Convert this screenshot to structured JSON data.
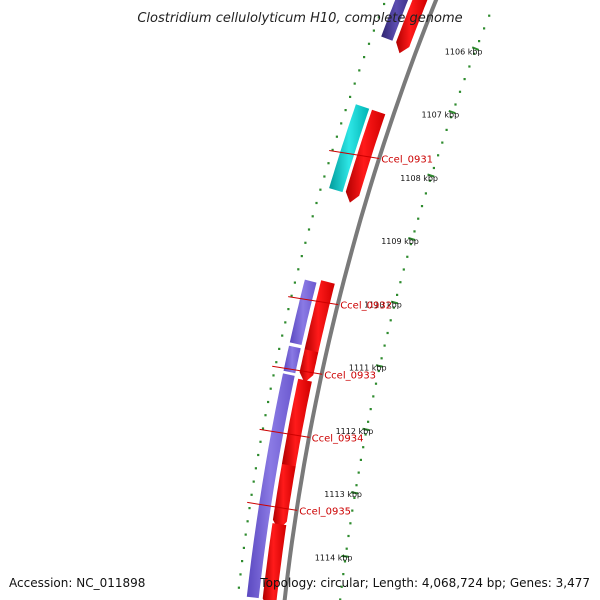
{
  "title": "Clostridium cellulolyticum H10, complete genome",
  "footer": {
    "accession": "Accession: NC_011898",
    "summary": "Topology: circular; Length: 4,068,724 bp; Genes: 3,477"
  },
  "ticks": [
    {
      "label": "1106 kbp",
      "kbp": 1106
    },
    {
      "label": "1107 kbp",
      "kbp": 1107
    },
    {
      "label": "1108 kbp",
      "kbp": 1108
    },
    {
      "label": "1109 kbp",
      "kbp": 1109
    },
    {
      "label": "1110 kbp",
      "kbp": 1110
    },
    {
      "label": "1111 kbp",
      "kbp": 1111
    },
    {
      "label": "1112 kbp",
      "kbp": 1112
    },
    {
      "label": "1113 kbp",
      "kbp": 1113
    },
    {
      "label": "1114 kbp",
      "kbp": 1114
    }
  ],
  "gene_labels": [
    {
      "label": "Ccel_0931",
      "kbp": 1108.1
    },
    {
      "label": "Ccel_0932",
      "kbp": 1110.3
    },
    {
      "label": "Ccel_0933",
      "kbp": 1111.35
    },
    {
      "label": "Ccel_0934",
      "kbp": 1112.3
    },
    {
      "label": "Ccel_0935",
      "kbp": 1113.4
    }
  ],
  "features": {
    "cds_red": [
      {
        "start": 1105.6,
        "end": 1106.32
      },
      {
        "start": 1107.35,
        "end": 1108.6
      },
      {
        "start": 1109.95,
        "end": 1111.0
      },
      {
        "start": 1111.0,
        "end": 1111.35
      },
      {
        "start": 1111.45,
        "end": 1112.75
      },
      {
        "start": 1112.75,
        "end": 1113.6
      },
      {
        "start": 1113.65,
        "end": 1114.8
      }
    ],
    "gene_purple": [
      {
        "start": 1110.0,
        "end": 1110.95,
        "color": "#7b68d8"
      },
      {
        "start": 1111.0,
        "end": 1111.38,
        "color": "#7b68d8"
      },
      {
        "start": 1111.42,
        "end": 1114.8,
        "color": "#7b68d8"
      },
      {
        "start": 1105.6,
        "end": 1106.32,
        "color": "#483d8b"
      }
    ],
    "rna_cyan": [
      {
        "start": 1107.35,
        "end": 1108.62
      }
    ]
  },
  "colors": {
    "title": "#222222",
    "backbone": "#7a7a7a",
    "tick": "#2e8b2e",
    "cds": "#ff0000",
    "gene_label": "#cc0000",
    "cyan": "#00c8c8"
  }
}
